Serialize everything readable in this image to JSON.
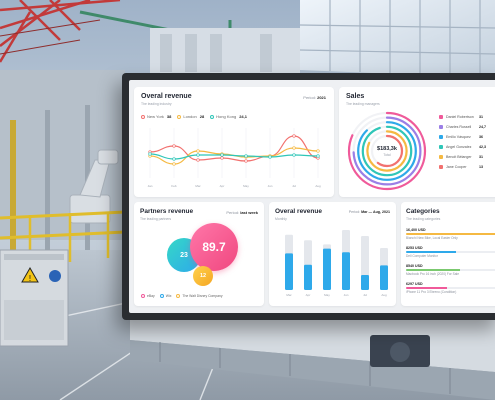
{
  "colors": {
    "accent_red": "#f2716f",
    "accent_yellow": "#f5b942",
    "accent_teal": "#2fc6b8",
    "accent_blue": "#2ea9ea",
    "accent_pink": "#f05a9a"
  },
  "overall_revenue": {
    "title": "Overal revenue",
    "subtitle": "The leading industry",
    "period_label": "Period:",
    "period_value": "2021",
    "legend": [
      {
        "name": "New York",
        "value": "38",
        "color": "#f2716f"
      },
      {
        "name": "London",
        "value": "28",
        "color": "#f5b942"
      },
      {
        "name": "Hong Kong",
        "value": "24,1",
        "color": "#2fc6b8"
      }
    ],
    "x_ticks": [
      "Jan",
      "Feb",
      "Mar",
      "Apr",
      "May",
      "Jun",
      "Jul",
      "Aug"
    ]
  },
  "sales": {
    "title": "Sales",
    "subtitle": "The leading managers",
    "total_value": "$183,3k",
    "total_label": "Total",
    "items": [
      {
        "name": "Daniel Robertson",
        "value": "31",
        "color": "#f05a9a"
      },
      {
        "name": "Charles Russell",
        "value": "24,7",
        "color": "#9b7fe6"
      },
      {
        "name": "Emilio Vásquez",
        "value": "36",
        "color": "#2ea9ea"
      },
      {
        "name": "Angel Gonzalez",
        "value": "42,3",
        "color": "#2fc6b8"
      },
      {
        "name": "Benoit Bélanger",
        "value": "31",
        "color": "#f5b942"
      },
      {
        "name": "Jane Cooper",
        "value": "13",
        "color": "#f2716f"
      }
    ]
  },
  "partners_revenue": {
    "title": "Partners revenue",
    "subtitle": "The leading partners",
    "period_label": "Period:",
    "period_value": "last week",
    "big_value": "89.7",
    "mid_value": "23",
    "small_value": "12",
    "legend": [
      {
        "name": "eBay",
        "color": "#f05a9a"
      },
      {
        "name": "Wix",
        "color": "#2ea9ea"
      },
      {
        "name": "The Walt Disney Company",
        "color": "#f5b942"
      }
    ]
  },
  "overall_revenue_monthly": {
    "title": "Overal revenue",
    "subtitle": "Monthly",
    "period_label": "Period:",
    "period_value": "Mar — Aug, 2021",
    "months": [
      "Mar",
      "Apr",
      "May",
      "Jun",
      "Jul",
      "Aug"
    ]
  },
  "categories": {
    "title": "Categories",
    "subtitle": "The leading categories",
    "items": [
      {
        "value": "16,400 USD",
        "name": "Bianchi New Bike, Local Easter Only",
        "fill": 1.0,
        "color": "#f5b942"
      },
      {
        "value": "8253 USD",
        "name": "Dell Computer Monitor",
        "fill": 0.55,
        "color": "#2ea9ea"
      },
      {
        "value": "8540 USD",
        "name": "Macbook Pro 16 inch (2020) For Sale",
        "fill": 0.6,
        "color": "#7bc96f"
      },
      {
        "value": "6297 USD",
        "name": "iPhone 11 Pro 3 Ebreno (Condition)",
        "fill": 0.45,
        "color": "#f05a9a"
      }
    ]
  },
  "chart_data": [
    {
      "type": "line",
      "x": [
        "Jan",
        "Feb",
        "Mar",
        "Apr",
        "May",
        "Jun",
        "Jul",
        "Aug"
      ],
      "ylim": [
        0,
        50
      ],
      "series": [
        {
          "name": "New York",
          "values": [
            26,
            32,
            18,
            20,
            17,
            22,
            42,
            20
          ]
        },
        {
          "name": "London",
          "values": [
            22,
            14,
            27,
            24,
            21,
            22,
            30,
            27
          ]
        },
        {
          "name": "Hong Kong",
          "values": [
            24,
            19,
            23,
            23,
            22,
            21,
            23,
            22
          ]
        }
      ]
    },
    {
      "type": "bar",
      "categories": [
        "Mar",
        "Apr",
        "May",
        "Jun",
        "Jul",
        "Aug"
      ],
      "ylim": [
        0,
        100
      ],
      "series": [
        {
          "values": [
            92,
            83,
            76,
            100,
            90,
            70
          ]
        },
        {
          "values": [
            61,
            42,
            69,
            63,
            25,
            41
          ]
        }
      ]
    },
    {
      "type": "pie",
      "categories": [
        "Daniel Robertson",
        "Charles Russell",
        "Emilio Vásquez",
        "Angel Gonzalez",
        "Benoit Bélanger",
        "Jane Cooper"
      ],
      "values": [
        31,
        24.7,
        36,
        42.3,
        31,
        13
      ]
    }
  ]
}
